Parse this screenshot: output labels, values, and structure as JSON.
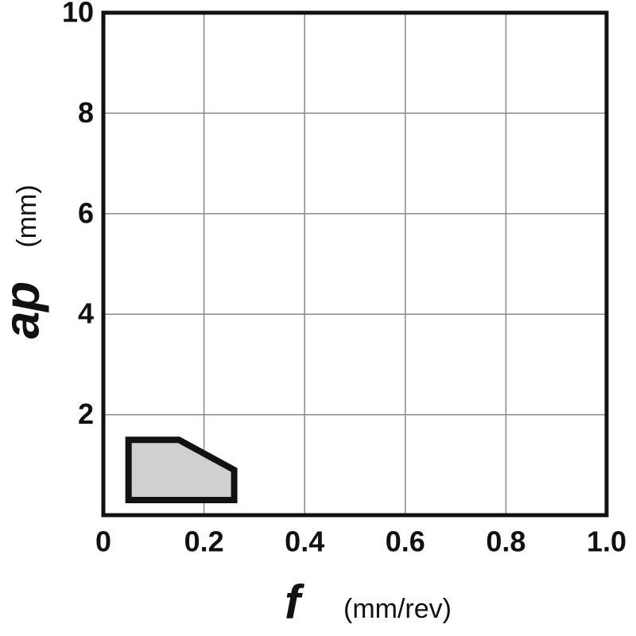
{
  "chart_data": {
    "type": "polygon",
    "x": [
      0.05,
      0.15,
      0.26,
      0.26,
      0.05
    ],
    "values": [
      1.5,
      1.5,
      0.9,
      0.3,
      0.3
    ],
    "color": "#d0d0d0",
    "x_label": "f",
    "x_unit": "(mm/rev)",
    "y_label": "ap",
    "y_unit": "(mm)",
    "xlim": [
      0,
      1
    ],
    "xticks": [
      0,
      0.2,
      0.4,
      0.6,
      0.8,
      {
        "value": 1,
        "label": "1.0"
      }
    ],
    "ylim": [
      0,
      10
    ],
    "yticks": [
      2,
      4,
      6,
      8,
      10
    ],
    "grid": true
  }
}
